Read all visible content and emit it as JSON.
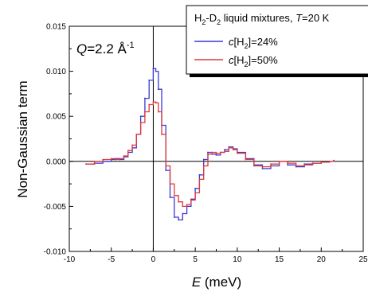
{
  "chart_data": {
    "type": "line",
    "xlabel_var": "E",
    "xlabel_unit": " (meV)",
    "ylabel": "Non-Gaussian term",
    "xlim": [
      -10,
      25
    ],
    "ylim": [
      -0.01,
      0.015
    ],
    "xticks": [
      -10,
      -5,
      0,
      5,
      10,
      15,
      20,
      25
    ],
    "xtick_labels": [
      "-10",
      "-5",
      "0",
      "5",
      "10",
      "15",
      "20",
      "25"
    ],
    "yticks": [
      -0.01,
      -0.005,
      0.0,
      0.005,
      0.01,
      0.015
    ],
    "ytick_labels": [
      "-0.010",
      "-0.005",
      "0.000",
      "0.005",
      "0.010",
      "0.015"
    ],
    "zero_lines": true,
    "annotation": {
      "var": "Q",
      "text": "=2.2 Å",
      "sup": "-1"
    },
    "legend": {
      "placement": "top-right",
      "title": {
        "pre": "H",
        "sub1": "2",
        "mid": "-D",
        "sub2": "2",
        "post": " liquid mixtures, ",
        "var": "T",
        "tail": "=20 K"
      },
      "entries": [
        {
          "pre": "c",
          "bracket_open": "[H",
          "sub": "2",
          "tail": "]=24%"
        },
        {
          "pre": "c",
          "bracket_open": "[H",
          "sub": "2",
          "tail": "]=50%"
        }
      ]
    },
    "series": [
      {
        "name": "c[H2]=24%",
        "color": "#3a3ad8",
        "x": [
          -8.0,
          -7.0,
          -6.0,
          -5.0,
          -4.5,
          -4.0,
          -3.5,
          -3.0,
          -2.5,
          -2.0,
          -1.5,
          -1.0,
          -0.5,
          0.0,
          0.3,
          0.6,
          1.0,
          1.5,
          2.0,
          2.5,
          3.0,
          3.5,
          4.0,
          4.5,
          5.0,
          5.5,
          6.0,
          6.5,
          7.0,
          7.5,
          8.0,
          8.5,
          9.0,
          9.5,
          10.0,
          11.0,
          12.0,
          13.0,
          14.0,
          15.0,
          16.0,
          17.0,
          18.0,
          19.0,
          20.0,
          21.0,
          21.5
        ],
        "y": [
          -0.0003,
          -0.0002,
          0.0,
          0.0002,
          0.0003,
          0.0002,
          0.0005,
          0.001,
          0.0015,
          0.003,
          0.005,
          0.007,
          0.009,
          0.0103,
          0.01,
          0.008,
          0.004,
          -0.001,
          -0.004,
          -0.0062,
          -0.0065,
          -0.0058,
          -0.005,
          -0.0042,
          -0.003,
          -0.0015,
          0.0002,
          0.001,
          0.0008,
          0.0007,
          0.001,
          0.0013,
          0.0016,
          0.0014,
          0.001,
          0.0003,
          -0.0004,
          -0.0008,
          -0.0005,
          0.0,
          -0.0004,
          -0.0006,
          -0.0003,
          -0.0002,
          -0.0001,
          0.0,
          0.0001
        ]
      },
      {
        "name": "c[H2]=50%",
        "color": "#e03a3a",
        "x": [
          -8.0,
          -7.0,
          -6.0,
          -5.0,
          -4.5,
          -4.0,
          -3.5,
          -3.0,
          -2.5,
          -2.0,
          -1.5,
          -1.0,
          -0.5,
          0.0,
          0.3,
          0.6,
          1.0,
          1.5,
          2.0,
          2.5,
          3.0,
          3.5,
          4.0,
          4.5,
          5.0,
          5.5,
          6.0,
          6.5,
          7.0,
          7.5,
          8.0,
          8.5,
          9.0,
          9.5,
          10.0,
          11.0,
          12.0,
          13.0,
          14.0,
          15.0,
          16.0,
          17.0,
          18.0,
          19.0,
          20.0,
          21.0,
          21.5
        ],
        "y": [
          -0.0003,
          0.0,
          0.0002,
          0.0003,
          0.0002,
          0.0003,
          0.0006,
          0.0012,
          0.0018,
          0.003,
          0.0043,
          0.0055,
          0.0063,
          0.0066,
          0.0065,
          0.0055,
          0.003,
          -0.0005,
          -0.0025,
          -0.0038,
          -0.0045,
          -0.005,
          -0.0048,
          -0.0043,
          -0.0035,
          -0.002,
          -0.0005,
          0.0008,
          0.001,
          0.0009,
          0.001,
          0.0011,
          0.0015,
          0.0013,
          0.0009,
          0.0002,
          -0.0005,
          -0.0006,
          -0.0003,
          0.0,
          -0.0002,
          -0.0005,
          -0.0004,
          -0.0002,
          -0.0001,
          0.0,
          0.0
        ]
      }
    ]
  }
}
